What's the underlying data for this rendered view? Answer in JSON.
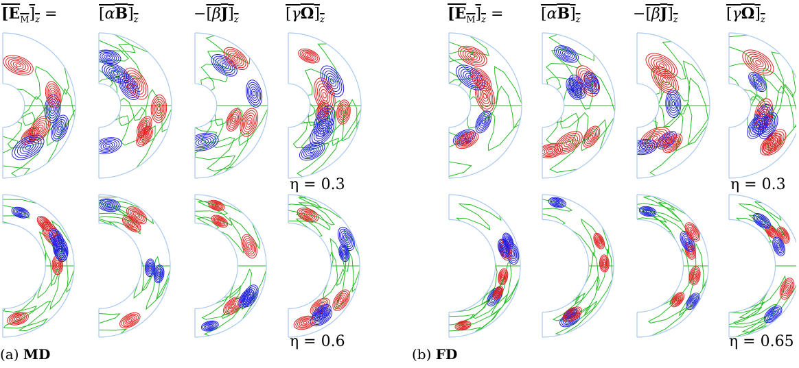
{
  "panels": [
    {
      "caption_prefix": "(a)",
      "caption_label": "MD",
      "headers": [
        "[E_M]_z =",
        "[αB]_z",
        "−[βJ]_z",
        "[γΩ]_z"
      ],
      "header_parts": [
        {
          "pre": "",
          "body": "[E",
          "sub1": "M",
          "mid": "]",
          "sub2": "z",
          "post": " ="
        },
        {
          "pre": "",
          "body": "[αB]",
          "sub1": "",
          "mid": "",
          "sub2": "z",
          "post": ""
        },
        {
          "pre": "−",
          "body": "[βJ]",
          "sub1": "",
          "mid": "",
          "sub2": "z",
          "post": ""
        },
        {
          "pre": "",
          "body": "[γΩ]",
          "sub1": "",
          "mid": "",
          "sub2": "z",
          "post": ""
        }
      ],
      "rows": [
        {
          "eta_label": "η = 0.3",
          "eta": 0.3
        },
        {
          "eta_label": "η = 0.6",
          "eta": 0.6
        }
      ]
    },
    {
      "caption_prefix": "(b)",
      "caption_label": "FD",
      "headers": [
        "[E_M]_z =",
        "[αB]_z",
        "−[βJ]_z",
        "[γΩ]_z"
      ],
      "header_parts": [
        {
          "pre": "",
          "body": "[E",
          "sub1": "M",
          "mid": "]",
          "sub2": "z",
          "post": " ="
        },
        {
          "pre": "",
          "body": "[αB]",
          "sub1": "",
          "mid": "",
          "sub2": "z",
          "post": ""
        },
        {
          "pre": "−",
          "body": "[βJ]",
          "sub1": "",
          "mid": "",
          "sub2": "z",
          "post": ""
        },
        {
          "pre": "",
          "body": "[γΩ]",
          "sub1": "",
          "mid": "",
          "sub2": "z",
          "post": ""
        }
      ],
      "rows": [
        {
          "eta_label": "η = 0.3",
          "eta": 0.3
        },
        {
          "eta_label": "η = 0.65",
          "eta": 0.65
        }
      ]
    }
  ],
  "colors": {
    "positive": "#e02020",
    "negative": "#2020e0",
    "zero": "#22bb22",
    "outer_boundary": "#222222",
    "inner_boundary": "#a9c8ef"
  }
}
